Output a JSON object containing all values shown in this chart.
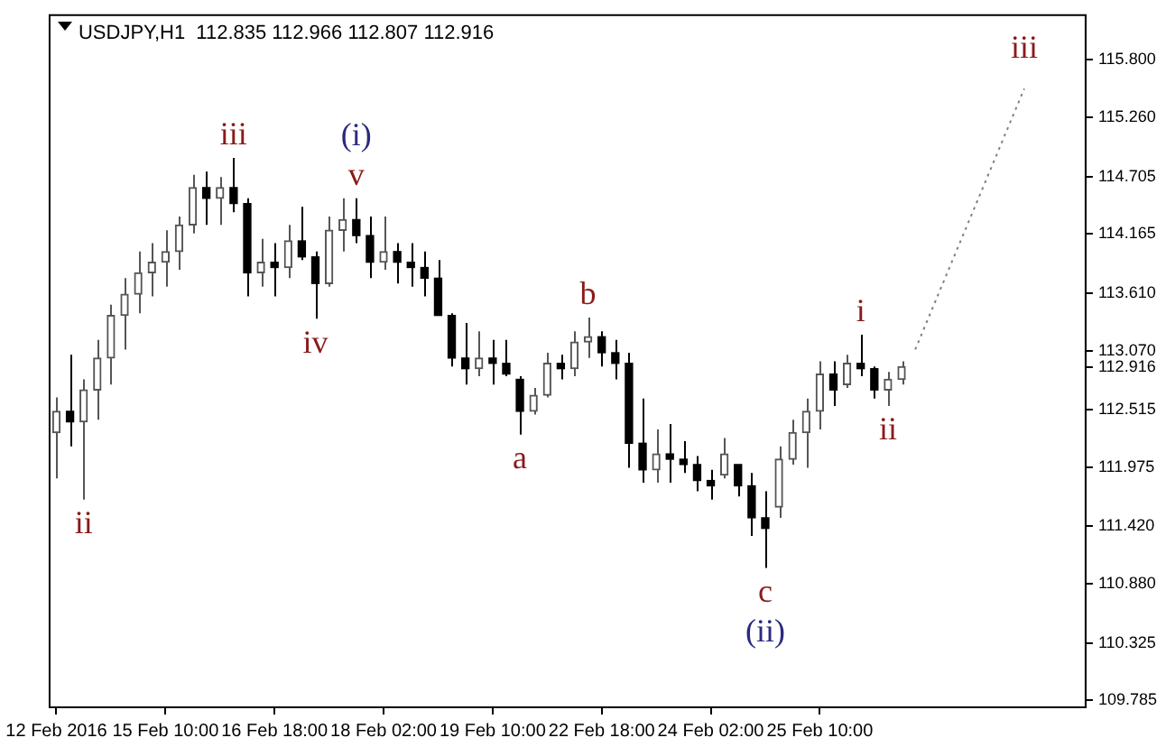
{
  "chart_data": {
    "type": "candlestick",
    "title": "USDJPY,H1  112.835 112.966 112.807 112.916",
    "colors": [
      "#555555",
      "#000000",
      "#555555",
      "#555555",
      "#555555",
      "#555555",
      "#555555",
      "#555555",
      "#555555",
      "#555555",
      "#555555",
      "#000000",
      "#555555",
      "#000000",
      "#000000",
      "#555555",
      "#000000",
      "#555555",
      "#000000",
      "#000000",
      "#555555",
      "#555555",
      "#000000",
      "#000000",
      "#555555",
      "#000000",
      "#000000",
      "#000000",
      "#000000",
      "#000000",
      "#000000",
      "#555555",
      "#000000",
      "#000000",
      "#000000",
      "#555555",
      "#555555",
      "#000000",
      "#555555",
      "#555555",
      "#000000",
      "#000000",
      "#000000",
      "#000000",
      "#555555",
      "#000000",
      "#000000",
      "#000000",
      "#000000",
      "#555555",
      "#000000",
      "#000000",
      "#000000",
      "#555555",
      "#555555",
      "#555555",
      "#555555",
      "#000000",
      "#555555",
      "#000000",
      "#000000",
      "#555555",
      "#555555",
      null,
      null,
      null,
      null,
      null,
      null,
      null,
      null,
      null,
      null,
      null,
      null,
      null
    ],
    "categories": [
      "12 Feb 2016",
      null,
      null,
      null,
      null,
      null,
      null,
      null,
      "15 Feb 10:00",
      null,
      null,
      null,
      null,
      null,
      null,
      null,
      "16 Feb 18:00",
      null,
      null,
      null,
      null,
      null,
      null,
      null,
      "18 Feb 02:00",
      null,
      null,
      null,
      null,
      null,
      null,
      null,
      "19 Feb 10:00",
      null,
      null,
      null,
      null,
      null,
      null,
      null,
      "22 Feb 18:00",
      null,
      null,
      null,
      null,
      null,
      null,
      null,
      "24 Feb 02:00",
      null,
      null,
      null,
      null,
      null,
      null,
      null,
      "25 Feb 10:00",
      null,
      null,
      null,
      null,
      null,
      null,
      null,
      null,
      null,
      null,
      null,
      null,
      null,
      null,
      null,
      null,
      null,
      null,
      null
    ],
    "ohlc": [
      [
        112.3,
        112.63,
        111.87,
        112.5
      ],
      [
        112.5,
        113.03,
        112.17,
        112.4
      ],
      [
        112.4,
        112.8,
        111.67,
        112.7
      ],
      [
        112.7,
        113.17,
        112.42,
        113.0
      ],
      [
        113.0,
        113.5,
        112.75,
        113.4
      ],
      [
        113.4,
        113.75,
        113.08,
        113.6
      ],
      [
        113.6,
        114.0,
        113.42,
        113.8
      ],
      [
        113.8,
        114.08,
        113.58,
        113.9
      ],
      [
        113.9,
        114.2,
        113.67,
        114.0
      ],
      [
        114.0,
        114.33,
        113.83,
        114.25
      ],
      [
        114.25,
        114.72,
        114.17,
        114.6
      ],
      [
        114.6,
        114.75,
        114.25,
        114.5
      ],
      [
        114.5,
        114.7,
        114.25,
        114.6
      ],
      [
        114.6,
        114.88,
        114.37,
        114.45
      ],
      [
        114.45,
        114.5,
        113.58,
        113.8
      ],
      [
        113.8,
        114.12,
        113.67,
        113.9
      ],
      [
        113.9,
        114.08,
        113.58,
        113.85
      ],
      [
        113.85,
        114.25,
        113.75,
        114.1
      ],
      [
        114.1,
        114.42,
        113.92,
        113.95
      ],
      [
        113.95,
        114.0,
        113.37,
        113.7
      ],
      [
        113.7,
        114.33,
        113.67,
        114.2
      ],
      [
        114.2,
        114.5,
        114.0,
        114.3
      ],
      [
        114.3,
        114.5,
        114.08,
        114.15
      ],
      [
        114.15,
        114.33,
        113.75,
        113.9
      ],
      [
        113.9,
        114.33,
        113.83,
        114.0
      ],
      [
        114.0,
        114.08,
        113.7,
        113.9
      ],
      [
        113.9,
        114.08,
        113.67,
        113.85
      ],
      [
        113.85,
        114.0,
        113.58,
        113.75
      ],
      [
        113.75,
        113.92,
        113.4,
        113.4
      ],
      [
        113.4,
        113.42,
        112.92,
        113.0
      ],
      [
        113.0,
        113.33,
        112.75,
        112.9
      ],
      [
        112.9,
        113.25,
        112.83,
        113.0
      ],
      [
        113.0,
        113.17,
        112.75,
        112.95
      ],
      [
        112.95,
        113.17,
        112.83,
        112.85
      ],
      [
        112.8,
        112.83,
        112.28,
        112.5
      ],
      [
        112.5,
        112.72,
        112.47,
        112.65
      ],
      [
        112.65,
        113.05,
        112.63,
        112.95
      ],
      [
        112.95,
        113.03,
        112.8,
        112.9
      ],
      [
        112.9,
        113.25,
        112.83,
        113.15
      ],
      [
        113.15,
        113.38,
        113.0,
        113.2
      ],
      [
        113.2,
        113.25,
        112.92,
        113.05
      ],
      [
        113.05,
        113.17,
        112.8,
        112.95
      ],
      [
        112.95,
        113.05,
        111.97,
        112.2
      ],
      [
        112.2,
        112.62,
        111.83,
        111.95
      ],
      [
        111.95,
        112.33,
        111.83,
        112.1
      ],
      [
        112.1,
        112.38,
        111.83,
        112.05
      ],
      [
        112.05,
        112.22,
        111.92,
        112.0
      ],
      [
        112.0,
        112.08,
        111.75,
        111.85
      ],
      [
        111.85,
        111.95,
        111.67,
        111.8
      ],
      [
        111.9,
        112.25,
        111.87,
        112.1
      ],
      [
        112.0,
        112.0,
        111.7,
        111.8
      ],
      [
        111.8,
        111.92,
        111.33,
        111.5
      ],
      [
        111.5,
        111.75,
        111.03,
        111.4
      ],
      [
        111.6,
        112.17,
        111.5,
        112.05
      ],
      [
        112.05,
        112.42,
        112.0,
        112.3
      ],
      [
        112.3,
        112.62,
        111.97,
        112.5
      ],
      [
        112.5,
        112.97,
        112.33,
        112.85
      ],
      [
        112.85,
        112.97,
        112.55,
        112.7
      ],
      [
        112.75,
        113.03,
        112.72,
        112.95
      ],
      [
        112.95,
        113.22,
        112.83,
        112.9
      ],
      [
        112.9,
        112.92,
        112.62,
        112.7
      ],
      [
        112.7,
        112.87,
        112.55,
        112.8
      ],
      [
        112.8,
        112.97,
        112.75,
        112.92
      ],
      null,
      null,
      null,
      null,
      null,
      null,
      null,
      null,
      null,
      null,
      null,
      null,
      null
    ],
    "series": [
      {
        "type": "line",
        "values": [
          null,
          null,
          null,
          null,
          null,
          null,
          null,
          null,
          null,
          null,
          null,
          null,
          null,
          null,
          null,
          null,
          null,
          null,
          null,
          null,
          null,
          null,
          null,
          null,
          null,
          null,
          null,
          null,
          null,
          null,
          null,
          null,
          null,
          null,
          null,
          null,
          null,
          null,
          null,
          null,
          null,
          null,
          null,
          null,
          null,
          null,
          null,
          null,
          null,
          null,
          null,
          null,
          null,
          null,
          null,
          null,
          null,
          null,
          null,
          null,
          null,
          null,
          null,
          113.08,
          null,
          null,
          null,
          null,
          null,
          null,
          null,
          115.53,
          null,
          null,
          null,
          null
        ],
        "color": "#808080",
        "line_style": "dotted"
      }
    ],
    "ylim": [
      109.72,
      116.22
    ],
    "yticks": [
      {
        "value": 115.8,
        "label": "115.800"
      },
      {
        "value": 115.26,
        "label": "115.260"
      },
      {
        "value": 114.705,
        "label": "114.705"
      },
      {
        "value": 114.165,
        "label": "114.165"
      },
      {
        "value": 113.61,
        "label": "113.610"
      },
      {
        "value": 113.07,
        "label": "113.070"
      },
      {
        "value": 112.916,
        "label": "112.916"
      },
      {
        "value": 112.515,
        "label": "112.515"
      },
      {
        "value": 111.975,
        "label": "111.975"
      },
      {
        "value": 111.42,
        "label": "111.420"
      },
      {
        "value": 110.88,
        "label": "110.880"
      },
      {
        "value": 110.325,
        "label": "110.325"
      },
      {
        "value": 109.785,
        "label": "109.785"
      }
    ],
    "annotations": [
      "ii",
      "iii",
      "(i)",
      "v",
      "iv",
      "a",
      "b",
      "c",
      "(ii)",
      "i",
      "ii",
      "iii"
    ]
  }
}
